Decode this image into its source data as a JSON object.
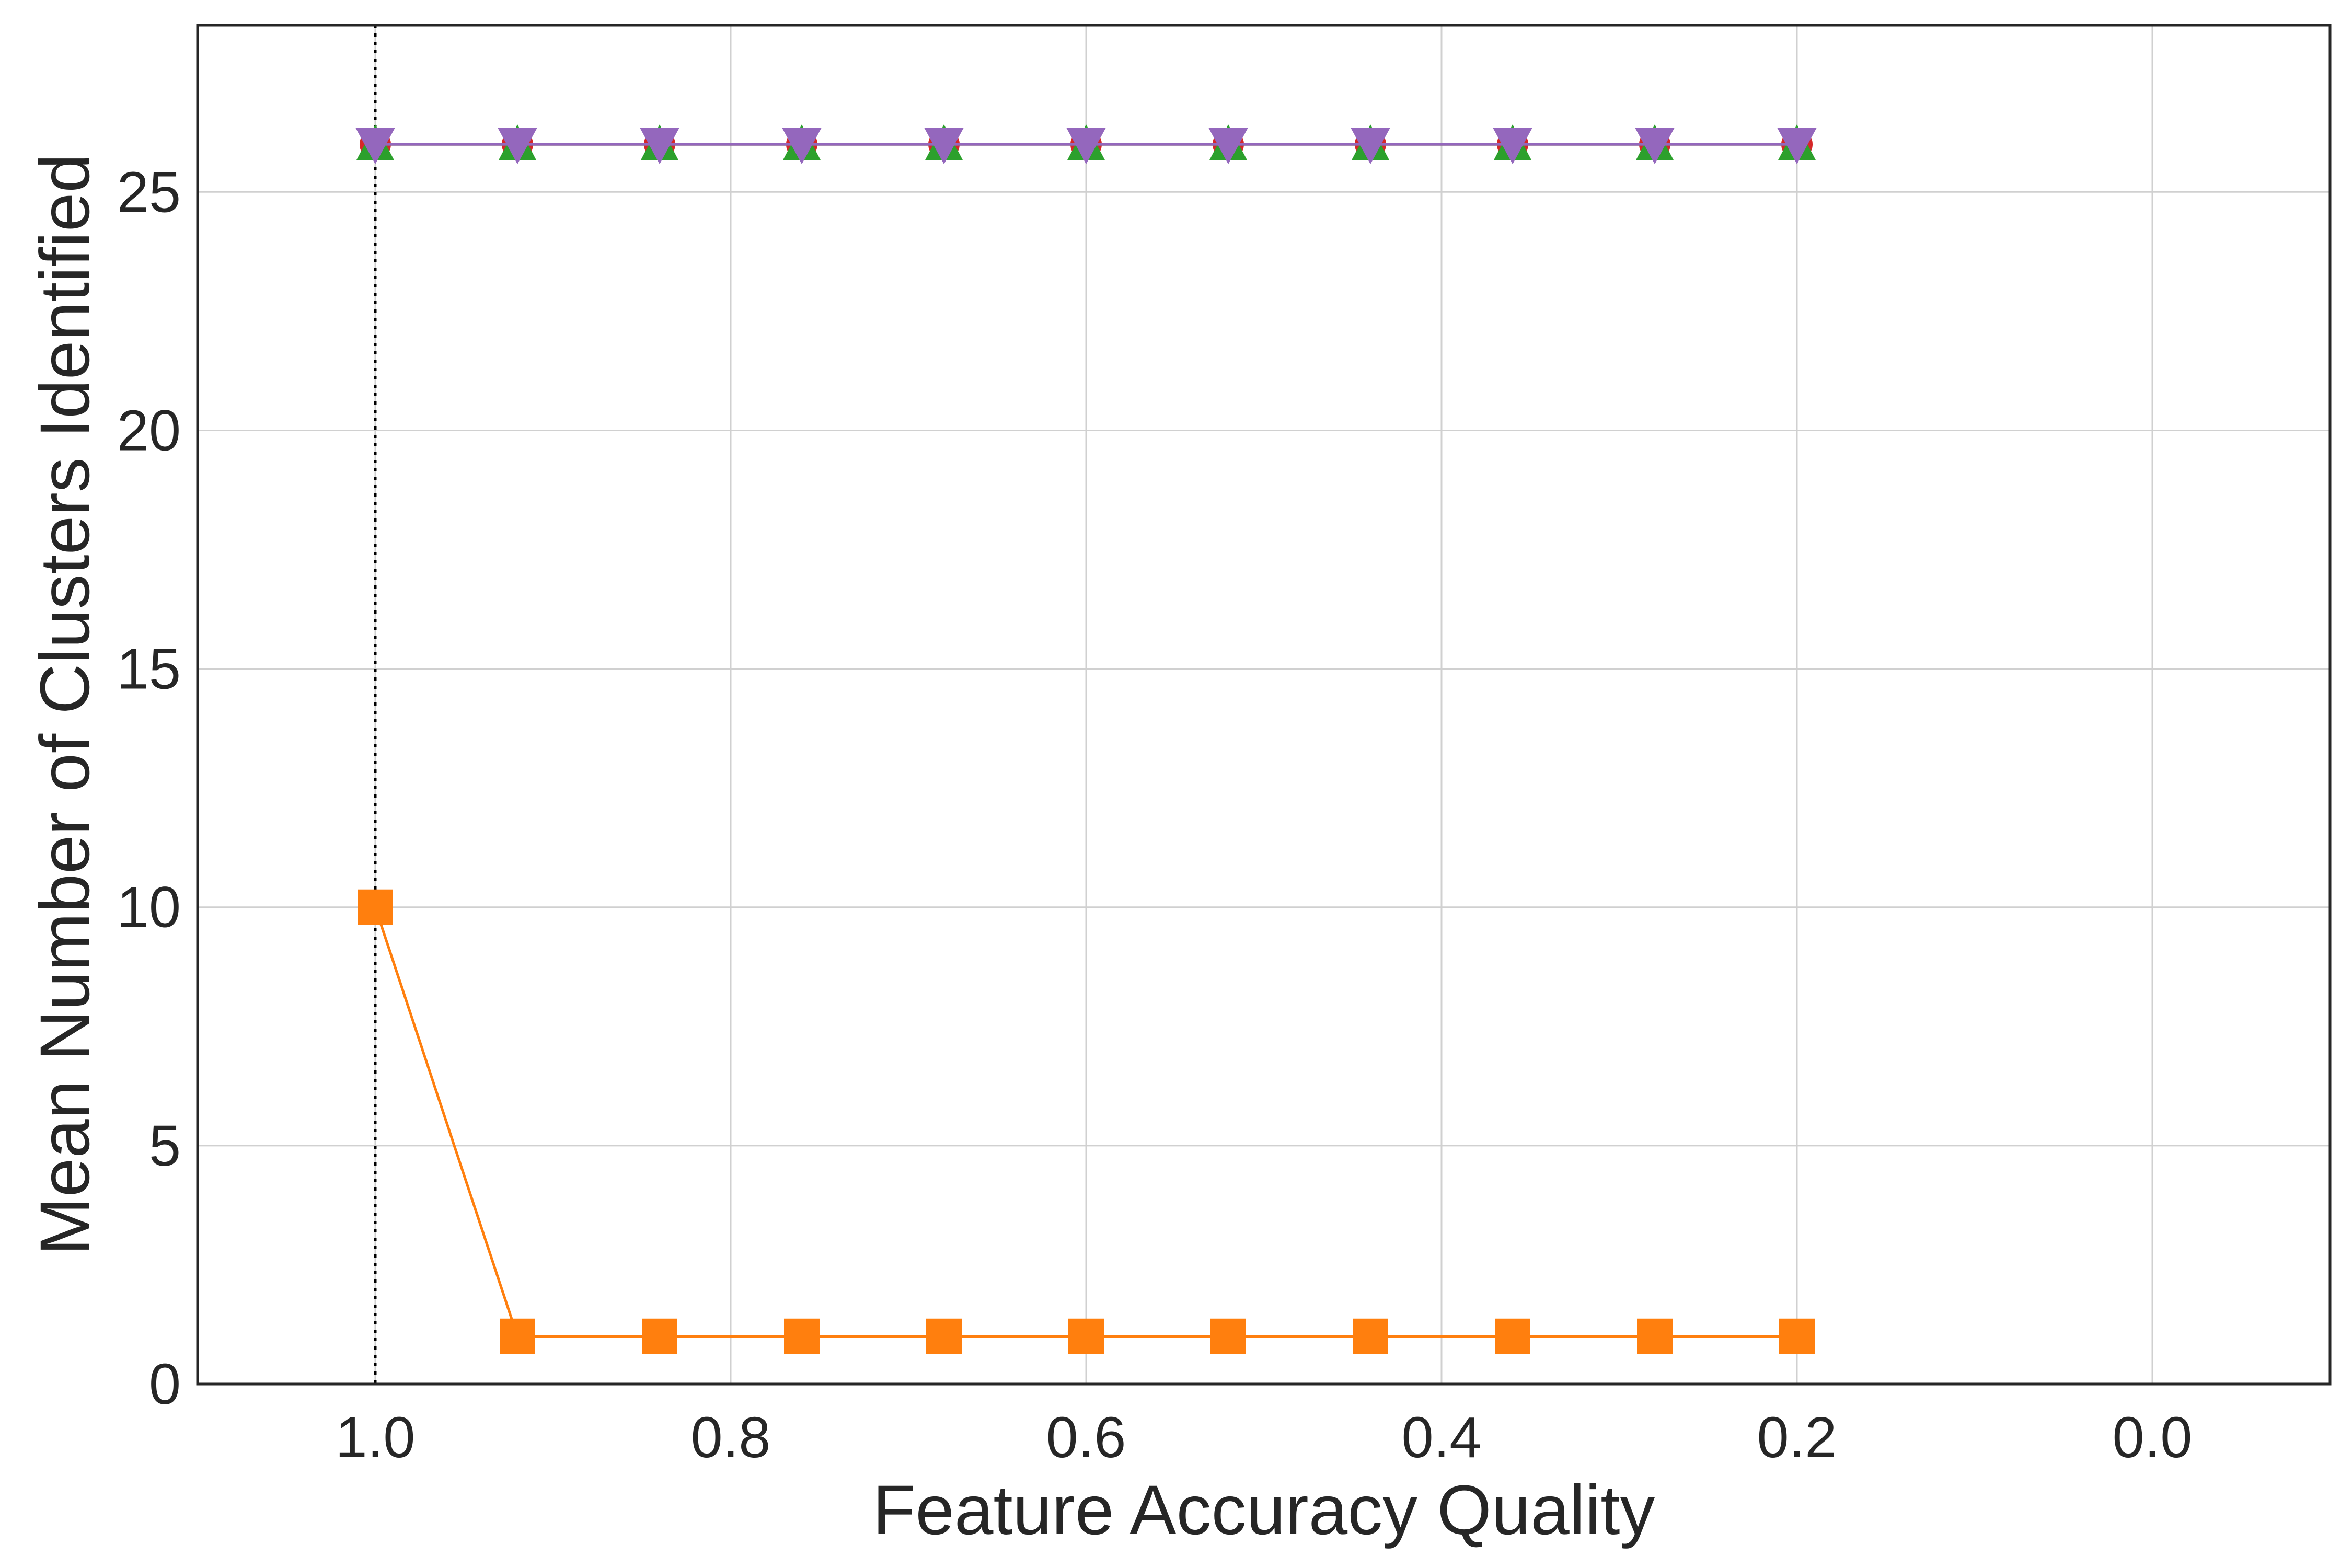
{
  "chart_data": {
    "type": "line",
    "title": "",
    "xlabel": "Feature Accuracy Quality",
    "ylabel": "Mean Number of Clusters Identified",
    "xlim": [
      1.1,
      -0.1
    ],
    "ylim": [
      0,
      28.5
    ],
    "x_inverted": true,
    "grid": true,
    "legend": "none",
    "x_ticks": [
      "1.0",
      "0.8",
      "0.6",
      "0.4",
      "0.2",
      "0.0"
    ],
    "y_ticks": [
      "0",
      "5",
      "10",
      "15",
      "20",
      "25"
    ],
    "reference_line": {
      "x": 1.0,
      "style": "dotted",
      "color": "#000000"
    },
    "x": [
      1.0,
      0.92,
      0.84,
      0.76,
      0.68,
      0.6,
      0.52,
      0.44,
      0.36,
      0.28,
      0.2
    ],
    "series": [
      {
        "marker": "circle",
        "color": "#d62728",
        "values": [
          26,
          26,
          26,
          26,
          26,
          26,
          26,
          26,
          26,
          26,
          26
        ]
      },
      {
        "marker": "triangle-up",
        "color": "#2ca02c",
        "values": [
          26,
          26,
          26,
          26,
          26,
          26,
          26,
          26,
          26,
          26,
          26
        ]
      },
      {
        "marker": "square",
        "color": "#ff7f0e",
        "values": [
          10,
          1,
          1,
          1,
          1,
          1,
          1,
          1,
          1,
          1,
          1
        ]
      },
      {
        "marker": "triangle-down",
        "color": "#9467bd",
        "values": [
          26,
          26,
          26,
          26,
          26,
          26,
          26,
          26,
          26,
          26,
          26
        ]
      }
    ]
  }
}
